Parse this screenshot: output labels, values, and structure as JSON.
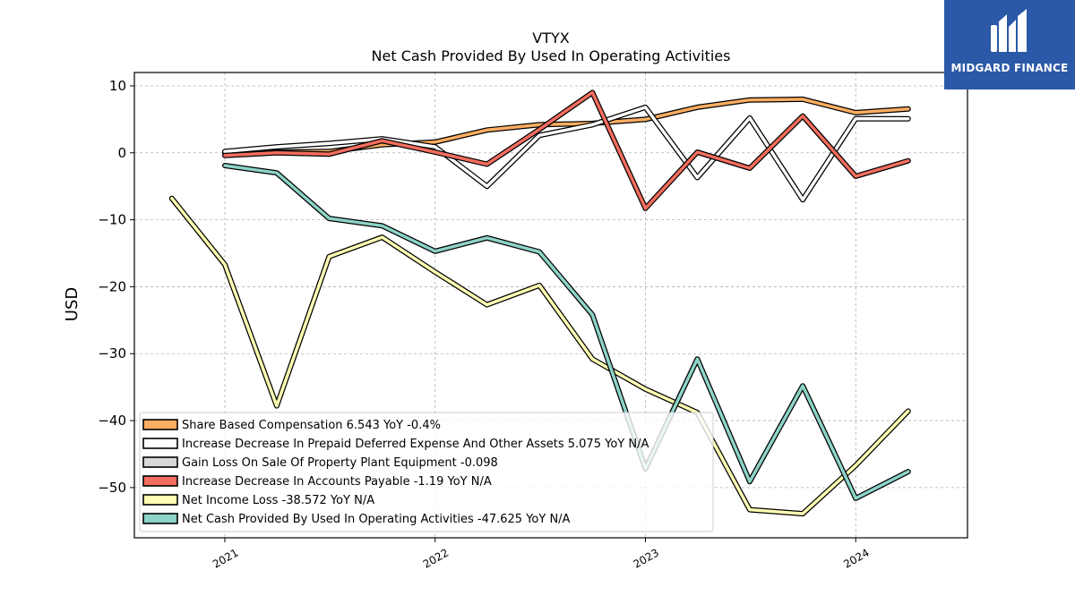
{
  "brand": {
    "name": "MIDGARD FINANCE",
    "bg_color": "#2b59a8",
    "icon": "midgard-logo-icon"
  },
  "chart_data": {
    "type": "line",
    "title": "VTYX",
    "subtitle": "Net Cash Provided By Used In Operating Activities",
    "xlabel": "",
    "ylabel": "USD",
    "x_ticks": [
      "2021",
      "2022",
      "2023",
      "2024"
    ],
    "y_ticks": [
      10,
      0,
      -10,
      -20,
      -30,
      -40,
      -50
    ],
    "ylim": [
      -57.5,
      12
    ],
    "xlim": [
      "2020-07-28",
      "2024-07-13"
    ],
    "grid": true,
    "legend_position": "lower-left",
    "series": [
      {
        "name": "Share Based Compensation",
        "legend": "Share Based Compensation  6.543 YoY -0.4%",
        "color": "#fdae61",
        "x": [
          "2021-01-01",
          "2021-04-01",
          "2021-07-01",
          "2021-10-01",
          "2022-01-01",
          "2022-04-01",
          "2022-07-01",
          "2022-10-01",
          "2023-01-01",
          "2023-04-01",
          "2023-07-01",
          "2023-10-01",
          "2024-01-01",
          "2024-04-01"
        ],
        "y": [
          0.0,
          0.1,
          0.2,
          1.2,
          1.6,
          3.4,
          4.2,
          4.4,
          5.0,
          6.8,
          7.9,
          8.0,
          6.0,
          6.543
        ]
      },
      {
        "name": "Increase Decrease In Prepaid Deferred Expense And Other Assets",
        "legend": "Increase Decrease In Prepaid Deferred Expense And Other Assets  5.075 YoY N/A",
        "color": "#ffffff",
        "x": [
          "2021-01-01",
          "2021-04-01",
          "2021-07-01",
          "2021-10-01",
          "2022-01-01",
          "2022-04-01",
          "2022-07-01",
          "2022-10-01",
          "2023-01-01",
          "2023-04-01",
          "2023-07-01",
          "2023-10-01",
          "2024-01-01",
          "2024-04-01"
        ],
        "y": [
          0.2,
          0.9,
          1.4,
          2.1,
          0.9,
          -5.0,
          2.6,
          4.2,
          6.8,
          -3.7,
          5.2,
          -7.0,
          5.1,
          5.075
        ]
      },
      {
        "name": "Gain Loss On Sale Of Property Plant Equipment",
        "legend": "Gain Loss On Sale Of Property Plant Equipment  -0.098",
        "color": "#d9d9d9",
        "x": [],
        "y": []
      },
      {
        "name": "Increase Decrease In Accounts Payable",
        "legend": "Increase Decrease In Accounts Payable  -1.19 YoY N/A",
        "color": "#f46d5e",
        "x": [
          "2021-01-01",
          "2021-04-01",
          "2021-07-01",
          "2021-10-01",
          "2022-01-01",
          "2022-04-01",
          "2022-07-01",
          "2022-10-01",
          "2023-01-01",
          "2023-04-01",
          "2023-07-01",
          "2023-10-01",
          "2024-01-01",
          "2024-04-01"
        ],
        "y": [
          -0.4,
          0.0,
          -0.2,
          1.8,
          0.1,
          -1.7,
          3.5,
          9.0,
          -8.3,
          0.1,
          -2.3,
          5.5,
          -3.5,
          -1.19
        ]
      },
      {
        "name": "Net Income Loss",
        "legend": "Net Income Loss  -38.572 YoY N/A",
        "color": "#ffffb3",
        "x": [
          "2020-10-01",
          "2021-01-01",
          "2021-04-01",
          "2021-07-01",
          "2021-10-01",
          "2022-01-01",
          "2022-04-01",
          "2022-07-01",
          "2022-10-01",
          "2023-01-01",
          "2023-04-01",
          "2023-07-01",
          "2023-10-01",
          "2024-01-01",
          "2024-04-01"
        ],
        "y": [
          -6.8,
          -16.7,
          -37.8,
          -15.5,
          -12.6,
          -17.8,
          -22.7,
          -19.8,
          -30.8,
          -35.3,
          -38.8,
          -53.3,
          -53.9,
          -46.7,
          -38.572
        ]
      },
      {
        "name": "Net Cash Provided By Used In Operating Activities",
        "legend": "Net Cash Provided By Used In Operating Activities  -47.625 YoY N/A",
        "color": "#8dd3c7",
        "x": [
          "2021-01-01",
          "2021-04-01",
          "2021-07-01",
          "2021-10-01",
          "2022-01-01",
          "2022-04-01",
          "2022-07-01",
          "2022-10-01",
          "2023-01-01",
          "2023-04-01",
          "2023-07-01",
          "2023-10-01",
          "2024-01-01",
          "2024-04-01"
        ],
        "y": [
          -1.9,
          -3.0,
          -9.8,
          -10.9,
          -14.7,
          -12.7,
          -14.8,
          -24.2,
          -47.2,
          -30.8,
          -49.1,
          -34.8,
          -51.6,
          -47.625
        ]
      }
    ]
  }
}
